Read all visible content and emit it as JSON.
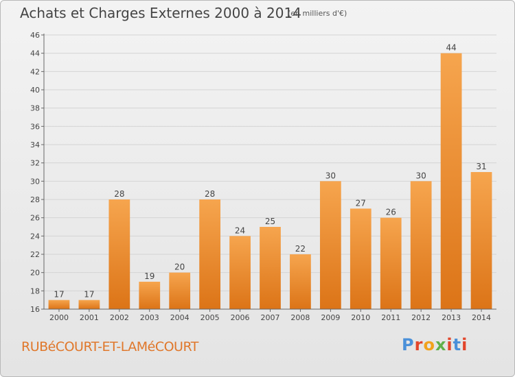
{
  "chart_data": {
    "type": "bar",
    "title": "Achats et Charges Externes 2000 à 2014",
    "subtitle": "(en milliers d'€)",
    "categories": [
      "2000",
      "2001",
      "2002",
      "2003",
      "2004",
      "2005",
      "2006",
      "2007",
      "2008",
      "2009",
      "2010",
      "2011",
      "2012",
      "2013",
      "2014"
    ],
    "values": [
      17,
      17,
      28,
      19,
      20,
      28,
      24,
      25,
      22,
      30,
      27,
      26,
      30,
      44,
      31
    ],
    "ylim": [
      16,
      46
    ],
    "yticks": [
      16,
      18,
      20,
      22,
      24,
      26,
      28,
      30,
      32,
      34,
      36,
      38,
      40,
      42,
      44,
      46
    ],
    "grid": true,
    "bar_color": "#f0913a"
  },
  "footer": {
    "town": "RUBéCOURT-ET-LAMéCOURT",
    "logo": "Proxiti"
  },
  "colors": {
    "town": "#e0772a",
    "logo": [
      "#4a90d9",
      "#e2452b",
      "#f2a21c",
      "#5fb04a",
      "#e2452b",
      "#4a90d9",
      "#e2452b"
    ]
  }
}
